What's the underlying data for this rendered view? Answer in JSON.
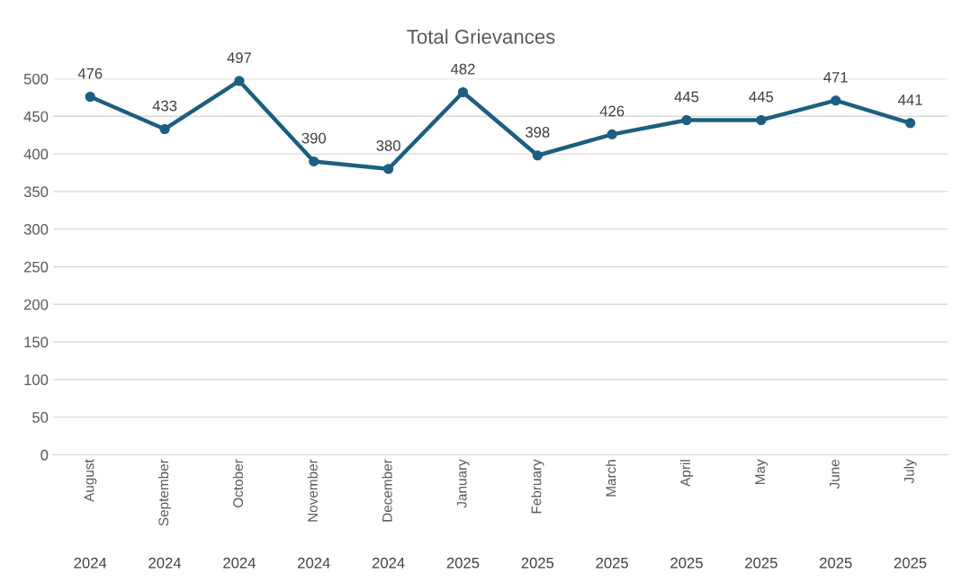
{
  "chart_data": {
    "type": "line",
    "title": "Total Grievances",
    "categories": [
      "August\n2024",
      "September\n2024",
      "October\n2024",
      "November\n2024",
      "December\n2024",
      "January\n2025",
      "February\n2025",
      "March\n2025",
      "April\n2025",
      "May\n2025",
      "June\n2025",
      "July\n2025"
    ],
    "series": [
      {
        "color": "#1c5f80",
        "values": [
          476,
          433,
          497,
          390,
          380,
          482,
          398,
          426,
          445,
          445,
          471,
          441
        ]
      }
    ],
    "ylim": [
      0,
      500
    ],
    "yticks": [
      0,
      50,
      100,
      150,
      200,
      250,
      300,
      350,
      400,
      450,
      500
    ],
    "grid": "y",
    "marker": "circle",
    "line_style": "solid",
    "data_labels": true
  }
}
